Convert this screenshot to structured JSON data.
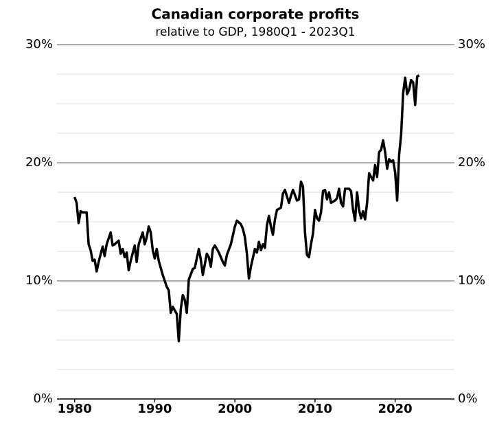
{
  "chart_data": {
    "type": "line",
    "title": "Canadian corporate profits",
    "subtitle": "relative to GDP, 1980Q1 - 2023Q1",
    "x": [
      1980,
      1980.25,
      1980.5,
      1980.75,
      1981,
      1981.5,
      1981.75,
      1982,
      1982.25,
      1982.5,
      1982.75,
      1983,
      1983.5,
      1983.75,
      1984,
      1984.5,
      1984.75,
      1985,
      1985.5,
      1985.75,
      1986,
      1986.25,
      1986.5,
      1986.75,
      1987,
      1987.5,
      1987.75,
      1988,
      1988.5,
      1988.75,
      1989,
      1989.25,
      1989.5,
      1989.75,
      1990,
      1990.25,
      1990.5,
      1991,
      1991.5,
      1991.75,
      1992,
      1992.25,
      1992.75,
      1993,
      1993.25,
      1993.5,
      1993.75,
      1994,
      1994.25,
      1994.75,
      1995,
      1995.5,
      1995.75,
      1996,
      1996.5,
      1996.75,
      1997,
      1997.25,
      1997.5,
      1998,
      1998.5,
      1998.75,
      1999,
      1999.5,
      2000,
      2000.25,
      2000.75,
      2001,
      2001.25,
      2001.5,
      2001.75,
      2002,
      2002.5,
      2002.75,
      2003,
      2003.25,
      2003.5,
      2003.75,
      2004,
      2004.25,
      2004.5,
      2004.75,
      2005,
      2005.25,
      2005.75,
      2006,
      2006.25,
      2006.75,
      2007,
      2007.25,
      2007.75,
      2008,
      2008.25,
      2008.5,
      2008.75,
      2009,
      2009.25,
      2009.5,
      2009.75,
      2010,
      2010.25,
      2010.5,
      2010.75,
      2011,
      2011.25,
      2011.5,
      2011.75,
      2012,
      2012.5,
      2012.75,
      2013,
      2013.25,
      2013.5,
      2013.75,
      2014.25,
      2014.5,
      2014.75,
      2015,
      2015.25,
      2015.5,
      2015.75,
      2016,
      2016.25,
      2016.5,
      2016.75,
      2017.25,
      2017.5,
      2017.75,
      2018,
      2018.25,
      2018.5,
      2018.75,
      2019,
      2019.25,
      2019.5,
      2019.75,
      2020,
      2020.25,
      2020.5,
      2020.75,
      2021,
      2021.25,
      2021.5,
      2021.75,
      2022,
      2022.25,
      2022.5,
      2022.75,
      2023
    ],
    "series": [
      {
        "color": "#000000",
        "values": [
          17.1,
          16.6,
          14.9,
          15.9,
          15.8,
          15.8,
          13.1,
          12.6,
          11.7,
          11.8,
          10.8,
          11.6,
          12.9,
          12.1,
          13.1,
          14.1,
          13.0,
          13.1,
          13.4,
          12.3,
          12.7,
          12.0,
          12.4,
          10.9,
          11.7,
          13.0,
          11.6,
          13.1,
          14.1,
          13.1,
          13.7,
          14.6,
          14.1,
          12.6,
          11.9,
          12.7,
          11.7,
          10.5,
          9.5,
          9.2,
          7.3,
          7.8,
          7.2,
          4.9,
          7.6,
          8.8,
          8.4,
          7.3,
          10.1,
          11.0,
          11.1,
          12.7,
          11.8,
          10.5,
          12.3,
          12.0,
          11.2,
          12.7,
          13.0,
          12.4,
          11.6,
          11.3,
          12.2,
          13.1,
          14.6,
          15.1,
          14.8,
          14.4,
          13.7,
          12.3,
          10.2,
          11.2,
          12.7,
          12.4,
          13.3,
          12.6,
          13.1,
          12.8,
          14.7,
          15.5,
          14.6,
          13.9,
          15.2,
          16.0,
          16.2,
          17.4,
          17.7,
          16.6,
          17.2,
          17.7,
          16.8,
          16.9,
          18.4,
          18.0,
          14.1,
          12.2,
          12.0,
          13.1,
          14.0,
          16.0,
          15.3,
          15.1,
          15.8,
          17.6,
          17.7,
          16.9,
          17.5,
          16.6,
          16.8,
          17.0,
          17.8,
          16.6,
          16.3,
          17.8,
          17.8,
          17.6,
          16.0,
          15.1,
          17.5,
          16.0,
          15.3,
          15.9,
          15.2,
          16.6,
          19.1,
          18.5,
          19.8,
          18.8,
          20.9,
          21.1,
          21.9,
          20.9,
          19.5,
          20.3,
          20.1,
          20.2,
          19.2,
          16.8,
          20.7,
          22.4,
          25.9,
          27.2,
          25.8,
          26.2,
          27.0,
          26.8,
          24.9,
          27.3,
          27.4
        ]
      }
    ],
    "xlim": [
      1977.8,
      2027.4
    ],
    "xticks": [
      1980,
      1990,
      2000,
      2010,
      2020
    ],
    "ylim": [
      0,
      30
    ],
    "yticks": [
      {
        "value": 0,
        "label": "0%"
      },
      {
        "value": 10,
        "label": "10%"
      },
      {
        "value": 20,
        "label": "20%"
      },
      {
        "value": 30,
        "label": "30%"
      }
    ],
    "minor_grid": [
      2.5,
      5,
      7.5,
      12.5,
      15,
      17.5,
      22.5,
      25,
      27.5
    ],
    "grid": true
  }
}
